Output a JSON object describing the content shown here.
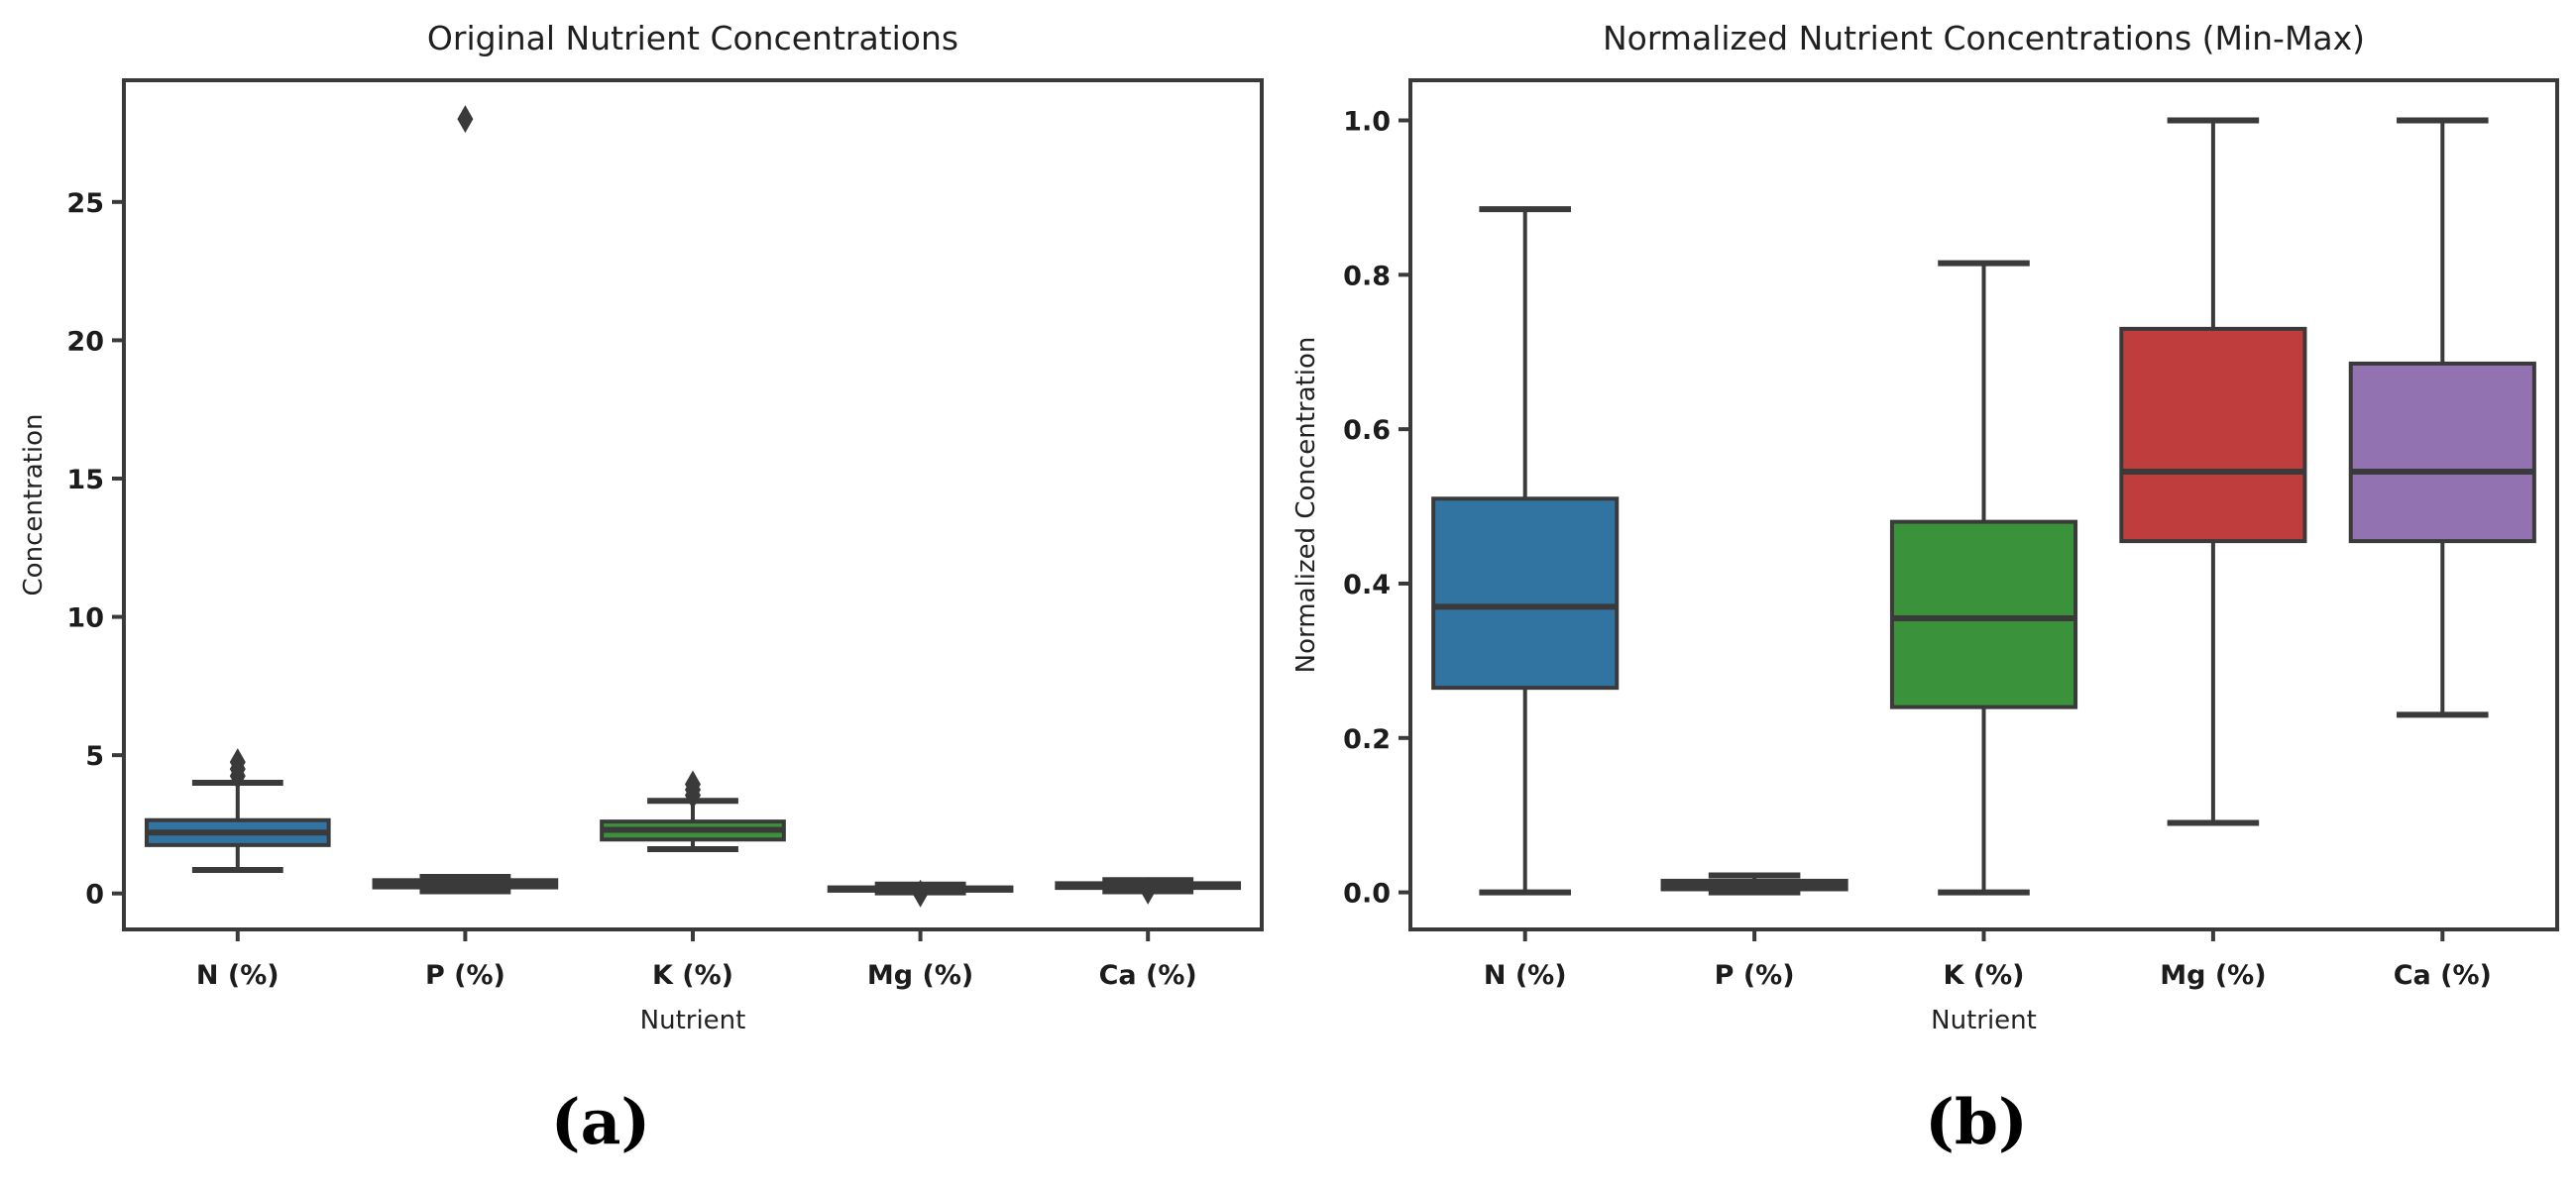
{
  "figure": {
    "background": "#ffffff",
    "caption_a": "(a)",
    "caption_b": "(b)",
    "text_color": "#1c1c1c",
    "line_color": "#3a3a3a"
  },
  "chart_data": [
    {
      "id": "a",
      "type": "boxplot",
      "title": "Original Nutrient Concentrations",
      "xlabel": "Nutrient",
      "ylabel": "Concentration",
      "categories": [
        "N (%)",
        "P (%)",
        "K (%)",
        "Mg (%)",
        "Ca (%)"
      ],
      "yticks": {
        "values": [
          0,
          5,
          10,
          15,
          20,
          25
        ],
        "labels": [
          "0",
          "5",
          "10",
          "15",
          "20",
          "25"
        ]
      },
      "ylim": [
        -1.3,
        29.4
      ],
      "grid": false,
      "legend": "none",
      "line_color": "#3a3a3a",
      "boxes": [
        {
          "category": "N (%)",
          "fill": "#3274a1",
          "whislo": 0.85,
          "q1": 1.75,
          "med": 2.2,
          "q3": 2.65,
          "whishi": 4.0,
          "outliers": [
            4.25,
            4.5,
            4.75
          ]
        },
        {
          "category": "P (%)",
          "fill": "#4a4a4a",
          "whislo": 0.08,
          "q1": 0.22,
          "med": 0.35,
          "q3": 0.48,
          "whishi": 0.6,
          "outliers": [
            28.0
          ]
        },
        {
          "category": "K (%)",
          "fill": "#3a923a",
          "whislo": 1.6,
          "q1": 1.95,
          "med": 2.3,
          "q3": 2.6,
          "whishi": 3.35,
          "outliers": [
            3.55,
            3.75,
            3.95
          ]
        },
        {
          "category": "Mg (%)",
          "fill": "#4a4a4a",
          "whislo": 0.04,
          "q1": 0.1,
          "med": 0.16,
          "q3": 0.22,
          "whishi": 0.32,
          "outliers": [
            0.0
          ]
        },
        {
          "category": "Ca (%)",
          "fill": "#4a4a4a",
          "whislo": 0.08,
          "q1": 0.2,
          "med": 0.28,
          "q3": 0.37,
          "whishi": 0.48,
          "outliers": [
            0.1
          ]
        }
      ]
    },
    {
      "id": "b",
      "type": "boxplot",
      "title": "Normalized Nutrient Concentrations (Min-Max)",
      "xlabel": "Nutrient",
      "ylabel": "Normalized Concentration",
      "categories": [
        "N (%)",
        "P (%)",
        "K (%)",
        "Mg (%)",
        "Ca (%)"
      ],
      "yticks": {
        "values": [
          0.0,
          0.2,
          0.4,
          0.6,
          0.8,
          1.0
        ],
        "labels": [
          "0.0",
          "0.2",
          "0.4",
          "0.6",
          "0.8",
          "1.0"
        ]
      },
      "ylim": [
        -0.048,
        1.052
      ],
      "grid": false,
      "legend": "none",
      "line_color": "#3a3a3a",
      "boxes": [
        {
          "category": "N (%)",
          "fill": "#3274a1",
          "whislo": 0.0,
          "q1": 0.265,
          "med": 0.37,
          "q3": 0.51,
          "whishi": 0.885,
          "outliers": []
        },
        {
          "category": "P (%)",
          "fill": "#4a4a4a",
          "whislo": 0.0,
          "q1": 0.004,
          "med": 0.009,
          "q3": 0.015,
          "whishi": 0.022,
          "outliers": []
        },
        {
          "category": "K (%)",
          "fill": "#3a923a",
          "whislo": 0.0,
          "q1": 0.24,
          "med": 0.355,
          "q3": 0.48,
          "whishi": 0.815,
          "outliers": []
        },
        {
          "category": "Mg (%)",
          "fill": "#c03d3e",
          "whislo": 0.09,
          "q1": 0.455,
          "med": 0.545,
          "q3": 0.73,
          "whishi": 1.0,
          "outliers": []
        },
        {
          "category": "Ca (%)",
          "fill": "#9372b2",
          "whislo": 0.23,
          "q1": 0.455,
          "med": 0.545,
          "q3": 0.685,
          "whishi": 1.0,
          "outliers": []
        }
      ]
    }
  ]
}
